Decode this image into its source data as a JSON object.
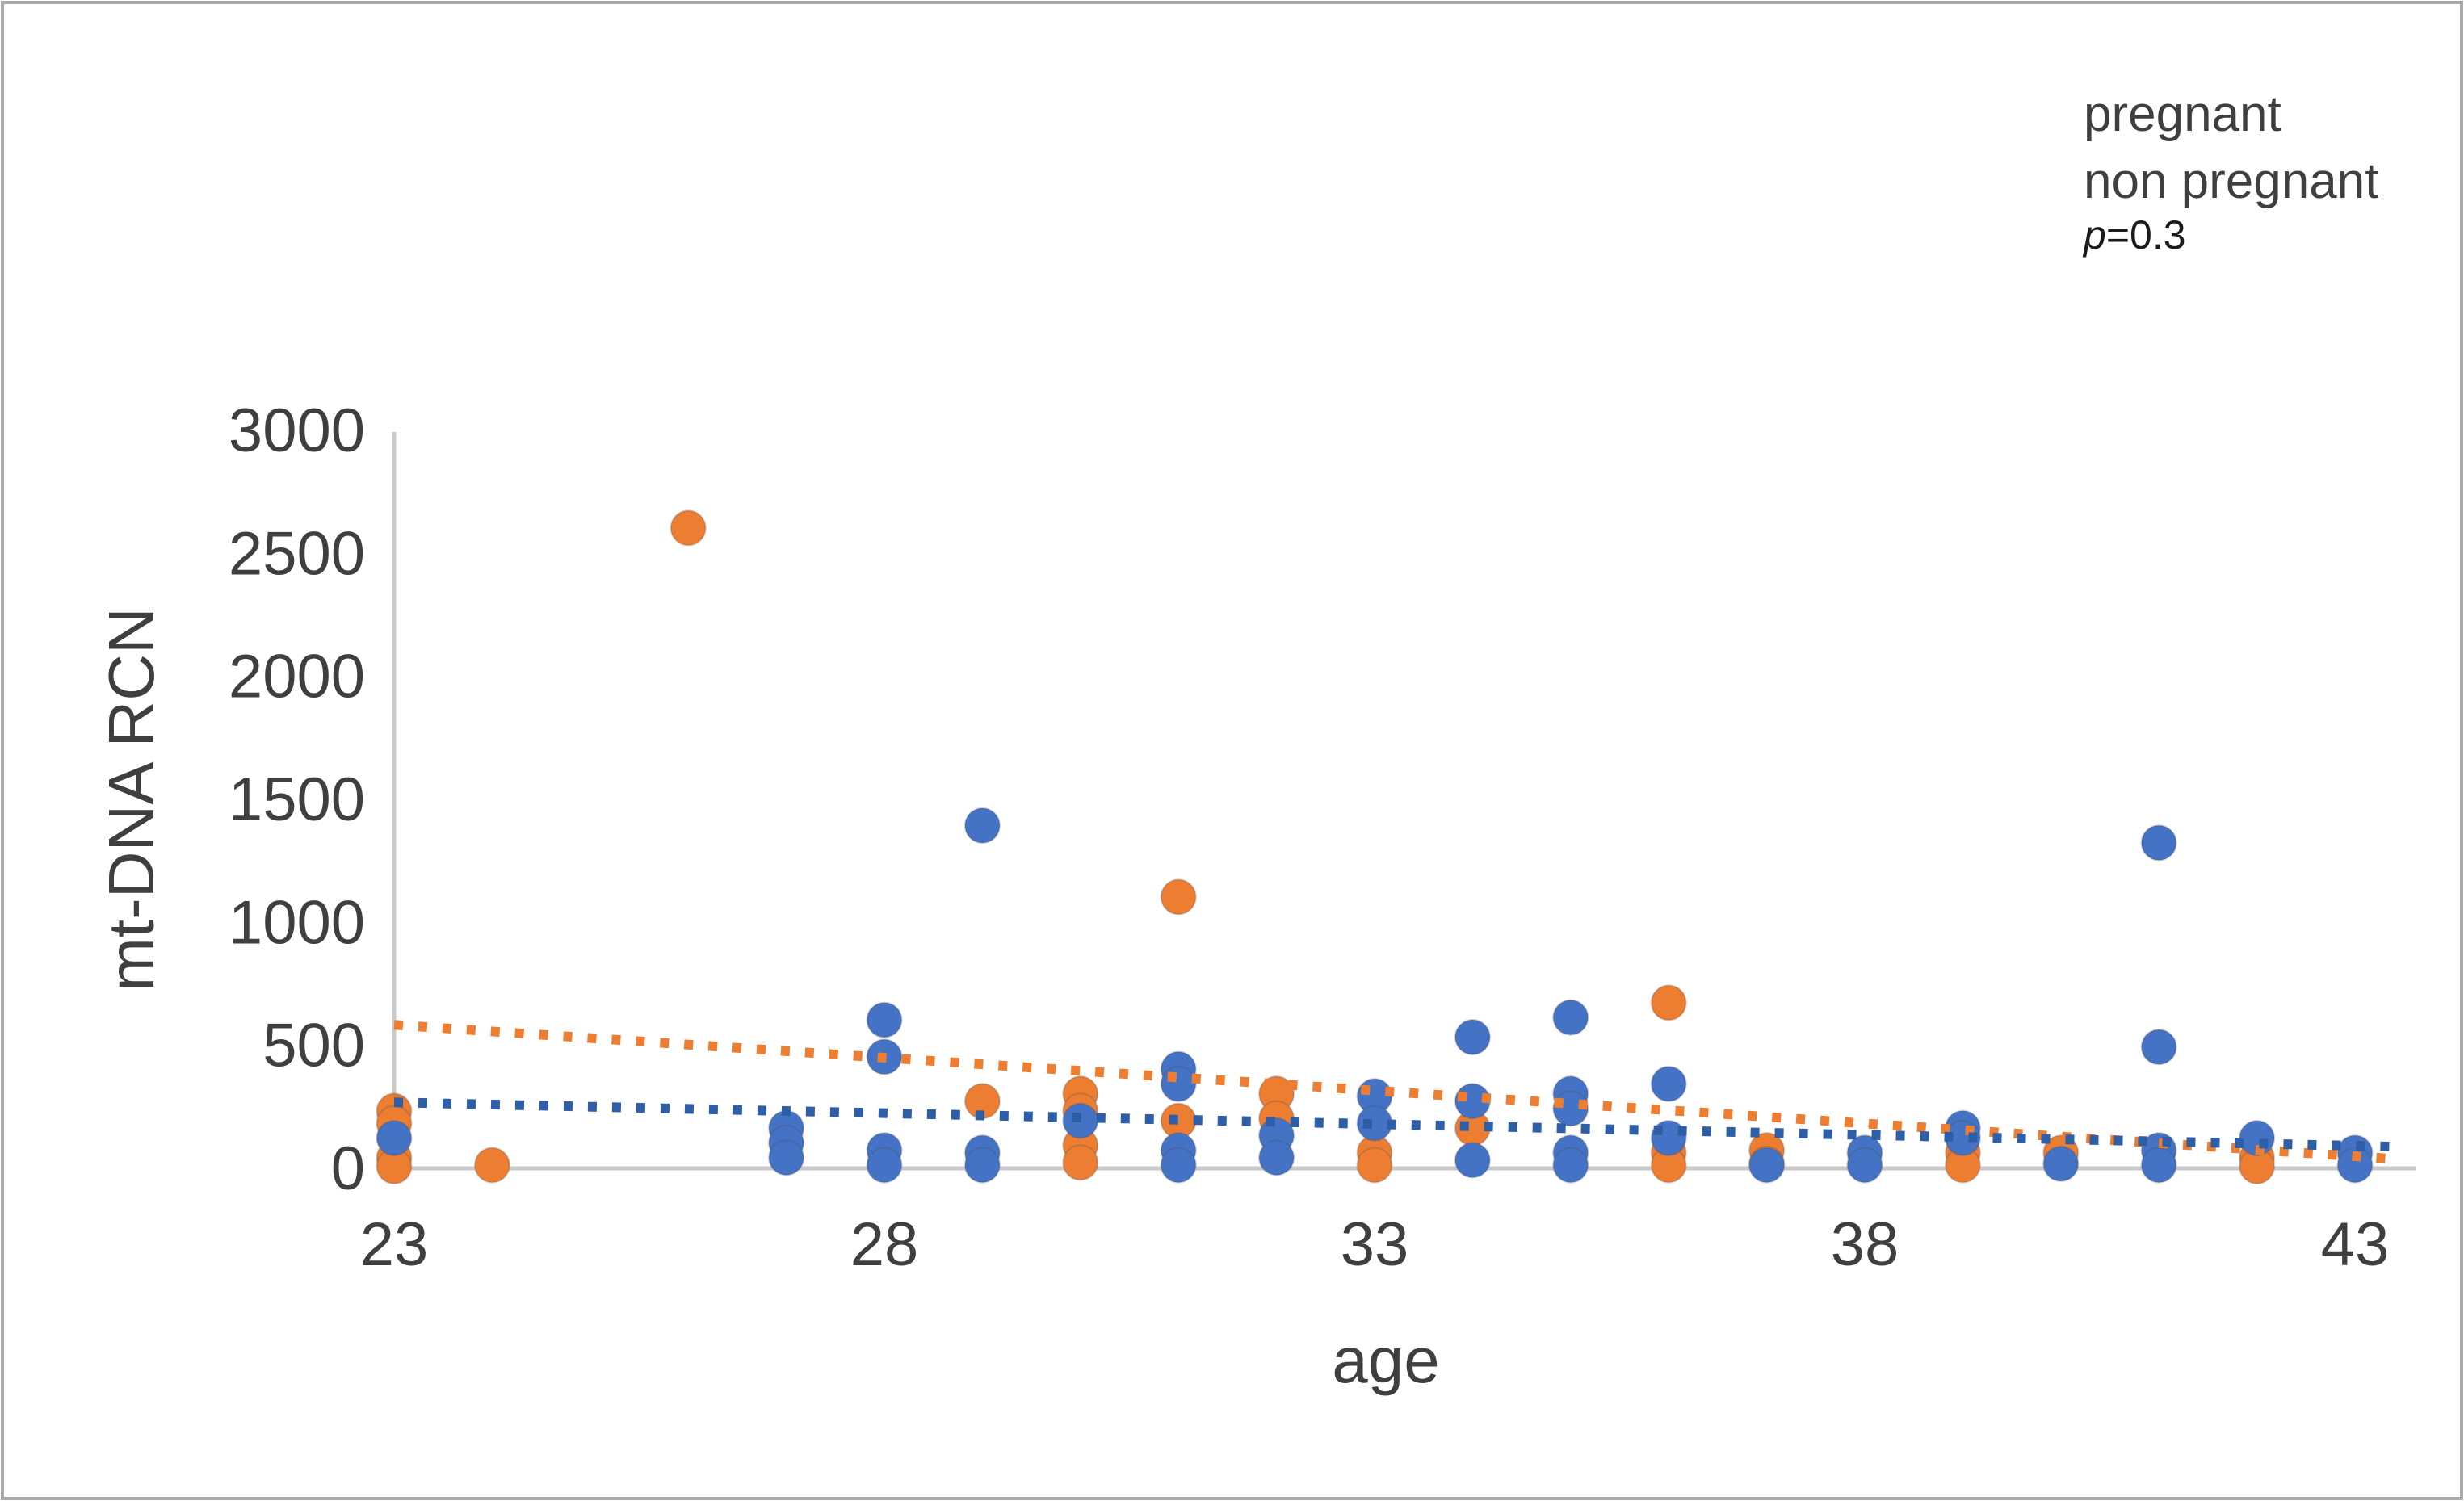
{
  "window": {
    "background": "#ffffff",
    "frame_border_color": "#a9a9a9"
  },
  "legend": {
    "items": [
      {
        "label": "pregnant",
        "color": "#ED7D31"
      },
      {
        "label": "non pregnant",
        "color": "#4A4AC4"
      }
    ],
    "p_italic": "p",
    "p_rest": "=0.3",
    "p_color": "#1a1a1a"
  },
  "axes": {
    "tick_color": "#3f3f3f",
    "line_color": "#c9c9c9"
  },
  "chart_data": {
    "type": "scatter",
    "title": "",
    "xlabel": "age",
    "ylabel": "mt-DNA RCN",
    "xlim": [
      23,
      43
    ],
    "ylim": [
      0,
      3000
    ],
    "xticks": [
      23,
      28,
      33,
      38,
      43
    ],
    "yticks": [
      0,
      500,
      1000,
      1500,
      2000,
      2500,
      3000
    ],
    "grid": false,
    "legend_position": "top-right",
    "series": [
      {
        "name": "pregnant",
        "color": "#ED7D31",
        "points": [
          [
            23,
            230
          ],
          [
            23,
            180
          ],
          [
            23,
            40
          ],
          [
            23,
            5
          ],
          [
            24,
            10
          ],
          [
            26,
            2600
          ],
          [
            29,
            270
          ],
          [
            30,
            300
          ],
          [
            30,
            230
          ],
          [
            30,
            90
          ],
          [
            30,
            20
          ],
          [
            31,
            1100
          ],
          [
            31,
            190
          ],
          [
            32,
            300
          ],
          [
            32,
            200
          ],
          [
            33,
            60
          ],
          [
            33,
            10
          ],
          [
            34,
            160
          ],
          [
            36,
            670
          ],
          [
            36,
            60
          ],
          [
            36,
            10
          ],
          [
            37,
            70
          ],
          [
            37,
            15
          ],
          [
            39,
            60
          ],
          [
            39,
            10
          ],
          [
            40,
            60
          ],
          [
            42,
            40
          ],
          [
            42,
            5
          ]
        ]
      },
      {
        "name": "non pregnant",
        "color": "#4472C4",
        "points": [
          [
            23,
            120
          ],
          [
            27,
            160
          ],
          [
            27,
            100
          ],
          [
            27,
            40
          ],
          [
            28,
            600
          ],
          [
            28,
            450
          ],
          [
            28,
            70
          ],
          [
            28,
            10
          ],
          [
            29,
            1390
          ],
          [
            29,
            60
          ],
          [
            29,
            10
          ],
          [
            30,
            190
          ],
          [
            31,
            400
          ],
          [
            31,
            340
          ],
          [
            31,
            70
          ],
          [
            31,
            10
          ],
          [
            32,
            130
          ],
          [
            32,
            40
          ],
          [
            33,
            290
          ],
          [
            33,
            180
          ],
          [
            34,
            530
          ],
          [
            34,
            270
          ],
          [
            34,
            30
          ],
          [
            35,
            610
          ],
          [
            35,
            300
          ],
          [
            35,
            240
          ],
          [
            35,
            60
          ],
          [
            35,
            10
          ],
          [
            36,
            340
          ],
          [
            36,
            120
          ],
          [
            37,
            10
          ],
          [
            38,
            60
          ],
          [
            38,
            10
          ],
          [
            39,
            160
          ],
          [
            39,
            120
          ],
          [
            40,
            15
          ],
          [
            41,
            1320
          ],
          [
            41,
            490
          ],
          [
            41,
            70
          ],
          [
            41,
            10
          ],
          [
            42,
            120
          ],
          [
            43,
            60
          ],
          [
            43,
            10
          ]
        ]
      }
    ],
    "trendlines": [
      {
        "series": "pregnant",
        "color": "#ED7D31",
        "x1": 23,
        "y1": 580,
        "x2": 43.4,
        "y2": 35
      },
      {
        "series": "non pregnant",
        "color": "#2E5FA6",
        "x1": 23,
        "y1": 265,
        "x2": 43.4,
        "y2": 85
      }
    ],
    "annotation": "p=0.3"
  }
}
